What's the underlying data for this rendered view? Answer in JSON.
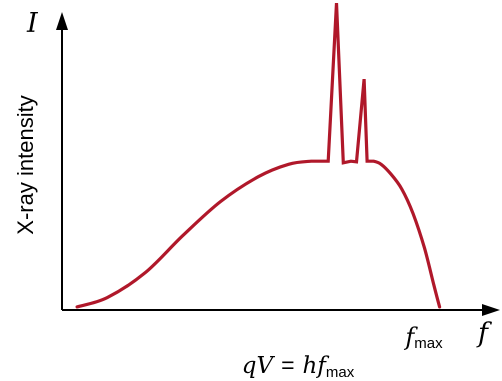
{
  "chart_data": {
    "type": "line",
    "title": "",
    "ylabel": "X-ray intensity",
    "y_axis_symbol": "I",
    "x_axis_symbol": "f",
    "tick_labels": [
      {
        "symbol": "f",
        "subscript": "max",
        "x": 1.0
      }
    ],
    "equation": {
      "lhs": "qV",
      "equals": "=",
      "rhs_symbol": "hf",
      "rhs_subscript": "max"
    },
    "line_color": "#b0182a",
    "xlim": [
      0,
      1.16
    ],
    "ylim": [
      0,
      1.0
    ],
    "grid": false,
    "legend": "none",
    "series": [
      {
        "x": [
          0.04,
          0.12,
          0.22,
          0.32,
          0.42,
          0.52,
          0.6,
          0.66,
          0.705,
          0.727,
          0.745,
          0.765,
          0.78,
          0.8,
          0.808,
          0.825,
          0.845,
          0.87,
          0.9,
          0.93,
          0.96,
          0.985,
          1.0
        ],
        "y": [
          0.01,
          0.04,
          0.12,
          0.24,
          0.35,
          0.43,
          0.47,
          0.48,
          0.48,
          0.99,
          0.475,
          0.48,
          0.478,
          0.745,
          0.48,
          0.48,
          0.47,
          0.44,
          0.39,
          0.31,
          0.2,
          0.08,
          0.01
        ]
      }
    ]
  }
}
